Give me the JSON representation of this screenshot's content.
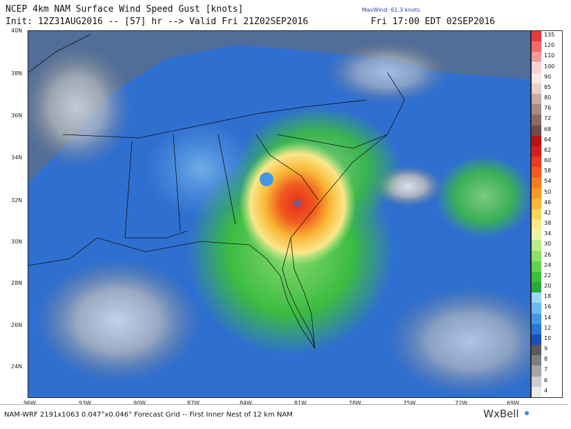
{
  "header": {
    "title": "NCEP 4km NAM Surface Wind Speed Gust [knots]",
    "init": "Init: 12Z31AUG2016 -- [57] hr --> Valid Fri 21Z02SEP2016",
    "local_time": "Fri 17:00 EDT 02SEP2016",
    "max_wind": "MaxWind: 61.3 knots"
  },
  "lat_labels": [
    "40N",
    "38N",
    "36N",
    "34N",
    "32N",
    "30N",
    "28N",
    "26N",
    "24N"
  ],
  "lon_labels": [
    "96W",
    "93W",
    "90W",
    "87W",
    "84W",
    "81W",
    "78W",
    "75W",
    "72W",
    "69W"
  ],
  "colorbar": {
    "levels": [
      "135",
      "120",
      "110",
      "100",
      "90",
      "85",
      "80",
      "76",
      "72",
      "68",
      "64",
      "62",
      "60",
      "58",
      "54",
      "50",
      "46",
      "42",
      "38",
      "34",
      "30",
      "26",
      "24",
      "22",
      "20",
      "18",
      "16",
      "14",
      "12",
      "10",
      "9",
      "8",
      "7",
      "6",
      "4"
    ],
    "colors": [
      "#e83a3a",
      "#f06a6a",
      "#f59a9a",
      "#fbd0d0",
      "#fbe6e6",
      "#e8cfc9",
      "#c9aaa4",
      "#a98983",
      "#8a6a64",
      "#6e4c47",
      "#b41616",
      "#d41e1e",
      "#e83a1e",
      "#f05a1e",
      "#f57c1e",
      "#f89a24",
      "#f9b735",
      "#fad25a",
      "#fbe78a",
      "#e9f5a6",
      "#b8ed8a",
      "#8fe06a",
      "#64d24c",
      "#3cc03a",
      "#2aa83a",
      "#9fd6f5",
      "#6fb8f0",
      "#4597e6",
      "#2c74d8",
      "#1b4fba",
      "#5a5a5a",
      "#7f7f7f",
      "#a5a5a5",
      "#cdcdcd",
      "#ececec"
    ]
  },
  "footer": {
    "grid_info": "NAM-WRF 2191x1063 0.047°x0.046° Forecast Grid -- First Inner Nest of 12 km NAM",
    "logo": "WxBell"
  }
}
